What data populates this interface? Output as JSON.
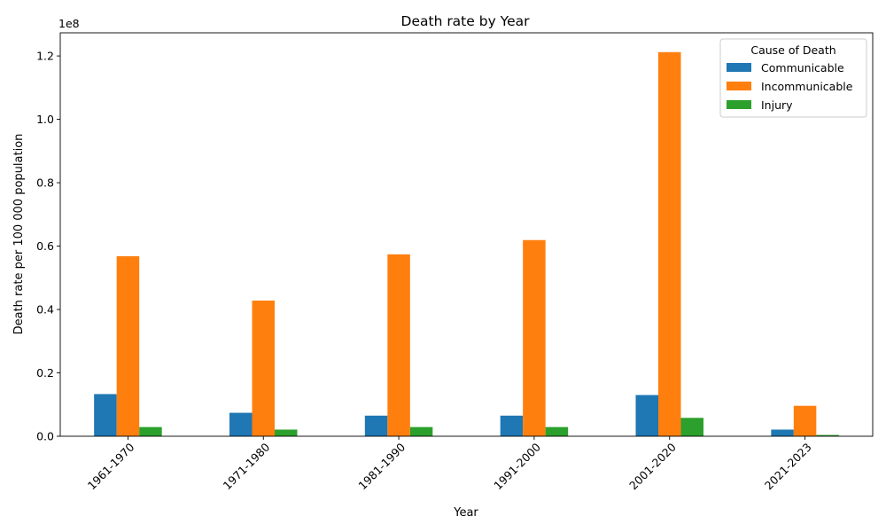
{
  "chart_data": {
    "type": "bar",
    "title": "Death rate by Year",
    "xlabel": "Year",
    "ylabel": "Death rate per 100 000 population",
    "y_scale_label": "1e8",
    "y_scale_factor": 100000000,
    "categories": [
      "1961-1970",
      "1971-1980",
      "1981-1990",
      "1991-2000",
      "2001-2020",
      "2021-2023"
    ],
    "series": [
      {
        "name": "Communicable",
        "color": "#1f77b4",
        "values": [
          13300000,
          7400000,
          6500000,
          6500000,
          13000000,
          2100000
        ]
      },
      {
        "name": "Incommunicable",
        "color": "#ff7f0e",
        "values": [
          56800000,
          42800000,
          57400000,
          61900000,
          121200000,
          9600000
        ]
      },
      {
        "name": "Injury",
        "color": "#2ca02c",
        "values": [
          2900000,
          2100000,
          2900000,
          2900000,
          5800000,
          400000
        ]
      }
    ],
    "yticks": [
      0,
      20000000,
      40000000,
      60000000,
      80000000,
      100000000,
      120000000
    ],
    "ytick_labels": [
      "0.0",
      "0.2",
      "0.4",
      "0.6",
      "0.8",
      "1.0",
      "1.2"
    ],
    "ylim": [
      0,
      127300000
    ],
    "legend": {
      "title": "Cause of Death",
      "position": "top-right"
    },
    "grid": false
  }
}
